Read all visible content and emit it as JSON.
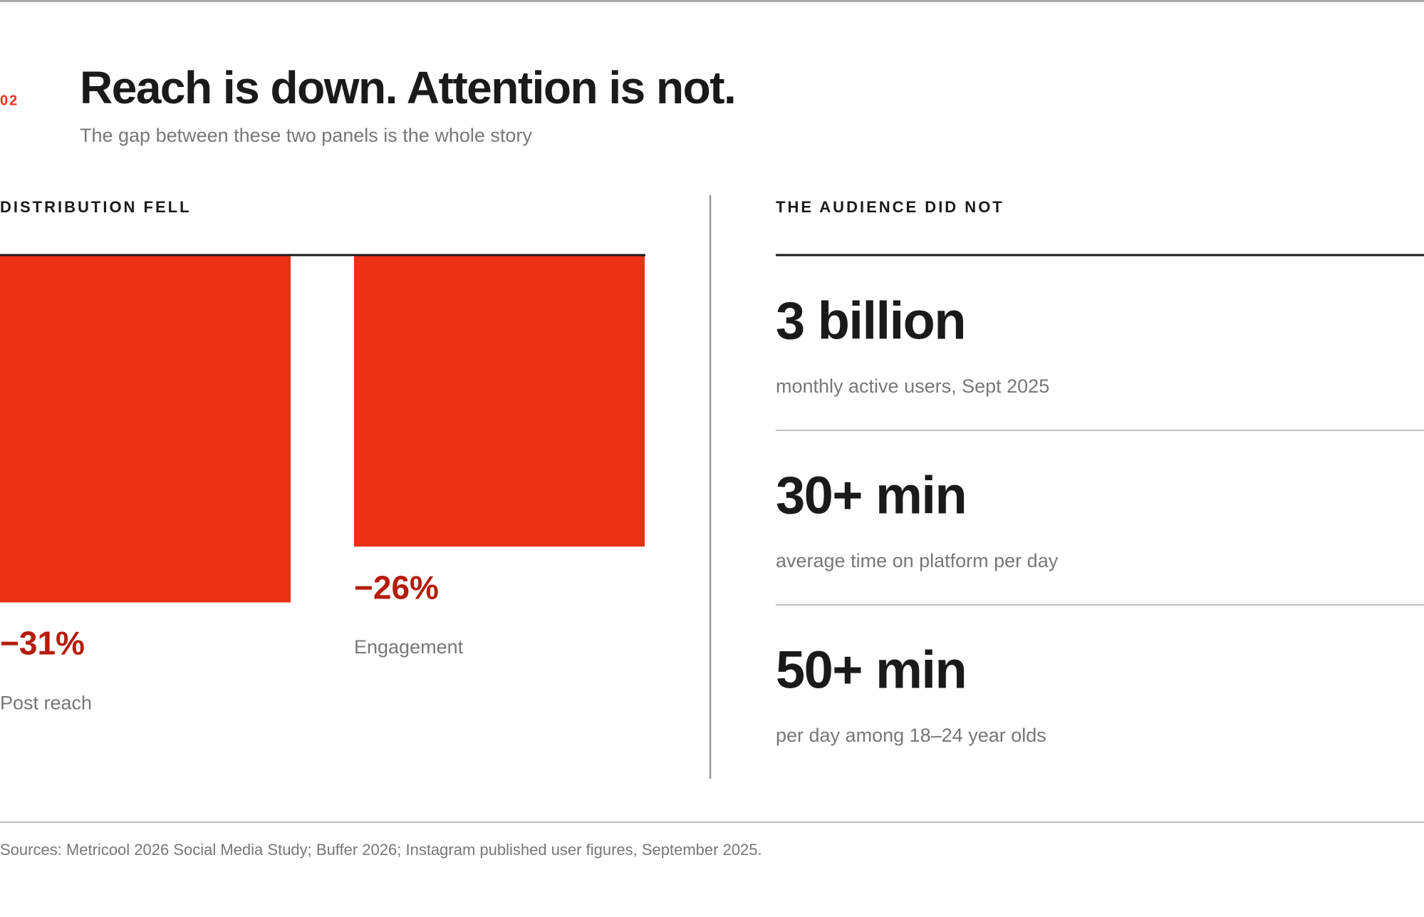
{
  "section_number": "02",
  "title": "Reach is down. Attention is not.",
  "subtitle": "The gap between these two panels is the whole story",
  "left_panel": {
    "heading": "DISTRIBUTION FELL"
  },
  "chart_data": {
    "type": "bar",
    "categories": [
      "Post reach",
      "Engagement"
    ],
    "values": [
      -31,
      -26
    ],
    "value_labels": [
      "−31%",
      "−26%"
    ],
    "color": "#ea3115"
  },
  "right_panel": {
    "heading": "THE AUDIENCE DID NOT",
    "stats": [
      {
        "value": "3 billion",
        "label": "monthly active users, Sept 2025"
      },
      {
        "value": "30+ min",
        "label": "average time on platform per day"
      },
      {
        "value": "50+ min",
        "label": "per day among 18–24 year olds"
      }
    ]
  },
  "sources": "Sources: Metricool 2026 Social Media Study; Buffer 2026; Instagram published user figures, September 2025."
}
